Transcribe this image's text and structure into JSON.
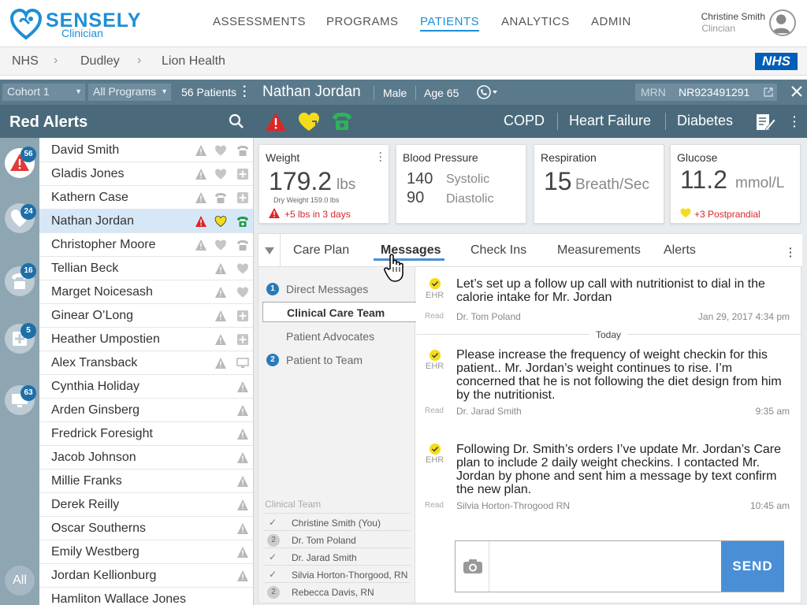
{
  "brand": {
    "name": "SENSELY",
    "sub": "Clinician",
    "color": "#1d8fd6"
  },
  "nav": [
    {
      "label": "ASSESSMENTS",
      "active": false
    },
    {
      "label": "PROGRAMS",
      "active": false
    },
    {
      "label": "PATIENTS",
      "active": true
    },
    {
      "label": "ANALYTICS",
      "active": false
    },
    {
      "label": "ADMIN",
      "active": false
    }
  ],
  "user": {
    "name": "Christine Smith",
    "role": "Clincian"
  },
  "breadcrumb": [
    "NHS",
    "Dudley",
    "Lion Health"
  ],
  "nhs_logo": "NHS",
  "filters": {
    "cohort": "Cohort 1",
    "program": "All Programs",
    "patient_count": "56 Patients"
  },
  "list_title": "Red Alerts",
  "alert_counts": {
    "red_alerts": "56",
    "heart": "24",
    "phone": "16",
    "plus": "5",
    "monitor": "63",
    "all_label": "All"
  },
  "patients": [
    {
      "name": "David Smith",
      "icons": [
        "warn",
        "heart",
        "phone"
      ]
    },
    {
      "name": "Gladis Jones",
      "icons": [
        "warn",
        "heart",
        "plus"
      ]
    },
    {
      "name": "Kathern Case",
      "icons": [
        "warn",
        "phone",
        "plus"
      ]
    },
    {
      "name": "Nathan Jordan",
      "icons": [
        "warn-red",
        "heart-yellow",
        "phone-green"
      ],
      "selected": true
    },
    {
      "name": "Christopher Moore",
      "icons": [
        "warn",
        "heart",
        "phone"
      ]
    },
    {
      "name": "Tellian Beck",
      "icons": [
        "warn",
        "heart"
      ]
    },
    {
      "name": "Marget Noicesash",
      "icons": [
        "warn",
        "heart"
      ]
    },
    {
      "name": "Ginear O’Long",
      "icons": [
        "warn",
        "plus"
      ]
    },
    {
      "name": "Heather Umpostien",
      "icons": [
        "warn",
        "plus"
      ]
    },
    {
      "name": "Alex Transback",
      "icons": [
        "warn",
        "monitor"
      ]
    },
    {
      "name": "Cynthia Holiday",
      "icons": [
        "warn"
      ]
    },
    {
      "name": "Arden Ginsberg",
      "icons": [
        "warn"
      ]
    },
    {
      "name": "Fredrick Foresight",
      "icons": [
        "warn"
      ]
    },
    {
      "name": "Jacob Johnson",
      "icons": [
        "warn"
      ]
    },
    {
      "name": "Millie Franks",
      "icons": [
        "warn"
      ]
    },
    {
      "name": "Derek Reilly",
      "icons": [
        "warn"
      ]
    },
    {
      "name": "Oscar Southerns",
      "icons": [
        "warn"
      ]
    },
    {
      "name": "Emily Westberg",
      "icons": [
        "warn"
      ]
    },
    {
      "name": "Jordan Kellionburg",
      "icons": [
        "warn"
      ]
    },
    {
      "name": "Hamliton Wallace Jones",
      "icons": []
    }
  ],
  "patient": {
    "name": "Nathan Jordan",
    "gender": "Male",
    "age": "Age 65",
    "mrn_label": "MRN",
    "mrn": "NR923491291",
    "conditions": [
      "COPD",
      "Heart Failure",
      "Diabetes"
    ]
  },
  "vitals": {
    "weight": {
      "title": "Weight",
      "value": "179.2",
      "unit": "lbs",
      "dry": "Dry Weight 159.0 lbs",
      "alert": "+5 lbs in 3 days"
    },
    "bp": {
      "title": "Blood Pressure",
      "systolic": "140",
      "systolic_label": "Systolic",
      "diastolic": "90",
      "diastolic_label": "Diastolic"
    },
    "resp": {
      "title": "Respiration",
      "value": "15",
      "unit": "Breath/Sec"
    },
    "glucose": {
      "title": "Glucose",
      "value": "11.2",
      "unit": "mmol/L",
      "alert": "+3 Postprandial"
    }
  },
  "tabs": [
    "Care Plan",
    "Messages",
    "Check Ins",
    "Measurements",
    "Alerts"
  ],
  "active_tab": "Messages",
  "channels": {
    "direct": {
      "num": "1",
      "label": "Direct Messages"
    },
    "clinical": "Clinical Care Team",
    "advocates": "Patient Advocates",
    "patient_team": {
      "num": "2",
      "label": "Patient to Team"
    }
  },
  "clinical_team": {
    "title": "Clinical Team",
    "members": [
      {
        "name": "Christine Smith (You)",
        "mark": "✓"
      },
      {
        "name": "Dr. Tom Poland",
        "mark": "2"
      },
      {
        "name": "Dr. Jarad Smith",
        "mark": "✓"
      },
      {
        "name": "Silvia Horton-Thorgood, RN",
        "mark": "✓"
      },
      {
        "name": "Rebecca Davis, RN",
        "mark": "2"
      }
    ]
  },
  "messages": [
    {
      "ehr": "EHR",
      "read": "Read",
      "text": "Let’s set up a follow up call with nutritionist to dial in the calorie intake for Mr. Jordan",
      "from": "Dr. Tom Poland",
      "time": "Jan 29, 2017 4:34 pm"
    },
    {
      "ehr": "EHR",
      "read": "Read",
      "text": "Please increase the frequency of weight checkin for this patient..  Mr. Jordan’s weight continues to rise. I’m concerned that he is not following the diet design from him by the nutritionist.",
      "from": "Dr. Jarad Smith",
      "time": "9:35 am"
    },
    {
      "ehr": "EHR",
      "read": "Read",
      "text": "Following Dr. Smith’s orders I’ve update Mr. Jordan’s Care plan to include 2 daily weight checkins.  I contacted Mr. Jordan by phone and sent him a message by text confirm the new plan.",
      "from": "Silvia Horton-Throgood RN",
      "time": "10:45 am"
    }
  ],
  "today_label": "Today",
  "composer": {
    "placeholder": "",
    "send": "SEND"
  }
}
